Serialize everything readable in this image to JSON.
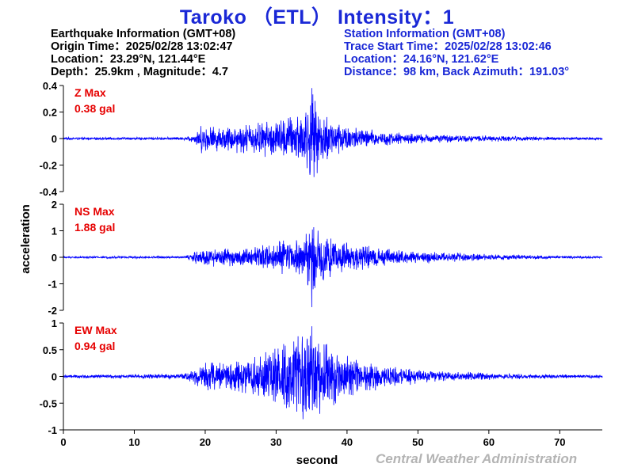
{
  "title": "Taroko （ETL） Intensity：1",
  "earthquake_info": {
    "heading": "Earthquake Information (GMT+08)",
    "origin_time": "Origin Time：2025/02/28 13:02:47",
    "location": "Location：23.29°N, 121.44°E",
    "depth_magnitude": "Depth：25.9km , Magnitude：4.7"
  },
  "station_info": {
    "heading": "Station Information (GMT+08)",
    "trace_start": "Trace Start Time：2025/02/28 13:02:46",
    "location": "Location：24.16°N, 121.62°E",
    "distance": "Distance：98 km, Back Azimuth：191.03°"
  },
  "footer": "Central Weather Administration",
  "colors": {
    "title": "#1a28d6",
    "trace": "#0000ff",
    "max_label": "#e60000",
    "footer": "#b4b4b4"
  },
  "chart_data": {
    "type": "line",
    "xlabel": "second",
    "ylabel": "acceleration",
    "xlim": [
      0,
      76
    ],
    "x_ticks": [
      0,
      10,
      20,
      30,
      40,
      50,
      60,
      70
    ],
    "grid": false,
    "panels": [
      {
        "component": "Z",
        "max_label": "Z Max",
        "max_value": "0.38 gal",
        "ylim": [
          -0.4,
          0.4
        ],
        "y_ticks": [
          -0.4,
          -0.2,
          0,
          0.2,
          0.4
        ],
        "y_tick_labels": [
          "-0.4",
          "-0.2",
          "0",
          "0.2",
          "0.4"
        ],
        "peak": 0.38,
        "envelope": [
          [
            0,
            0.01
          ],
          [
            17,
            0.012
          ],
          [
            18.5,
            0.04
          ],
          [
            19.5,
            0.12
          ],
          [
            22,
            0.1
          ],
          [
            26,
            0.13
          ],
          [
            30,
            0.16
          ],
          [
            32,
            0.2
          ],
          [
            34,
            0.25
          ],
          [
            35,
            0.38
          ],
          [
            36,
            0.24
          ],
          [
            38,
            0.17
          ],
          [
            41,
            0.1
          ],
          [
            45,
            0.06
          ],
          [
            50,
            0.04
          ],
          [
            55,
            0.03
          ],
          [
            60,
            0.025
          ],
          [
            65,
            0.02
          ],
          [
            70,
            0.012
          ],
          [
            76,
            0.01
          ]
        ]
      },
      {
        "component": "NS",
        "max_label": "NS Max",
        "max_value": "1.88 gal",
        "ylim": [
          -2,
          2
        ],
        "y_ticks": [
          -2,
          -1,
          0,
          1,
          2
        ],
        "y_tick_labels": [
          "-2",
          "-1",
          "0",
          "1",
          "2"
        ],
        "peak": 1.88,
        "envelope": [
          [
            0,
            0.04
          ],
          [
            17,
            0.05
          ],
          [
            18.5,
            0.25
          ],
          [
            20,
            0.4
          ],
          [
            23,
            0.35
          ],
          [
            27,
            0.45
          ],
          [
            30,
            0.6
          ],
          [
            33,
            0.9
          ],
          [
            34.5,
            1.3
          ],
          [
            35,
            1.88
          ],
          [
            36,
            1.1
          ],
          [
            38,
            0.8
          ],
          [
            40,
            0.6
          ],
          [
            43,
            0.45
          ],
          [
            46,
            0.35
          ],
          [
            50,
            0.25
          ],
          [
            55,
            0.2
          ],
          [
            60,
            0.12
          ],
          [
            65,
            0.1
          ],
          [
            70,
            0.06
          ],
          [
            76,
            0.04
          ]
        ]
      },
      {
        "component": "EW",
        "max_label": "EW Max",
        "max_value": "0.94 gal",
        "ylim": [
          -1,
          1
        ],
        "y_ticks": [
          -1,
          -0.5,
          0,
          0.5,
          1
        ],
        "y_tick_labels": [
          "-1",
          "-0.5",
          "0",
          "0.5",
          "1"
        ],
        "peak": 0.94,
        "envelope": [
          [
            0,
            0.03
          ],
          [
            10,
            0.04
          ],
          [
            17,
            0.06
          ],
          [
            18.5,
            0.2
          ],
          [
            20,
            0.3
          ],
          [
            24,
            0.35
          ],
          [
            28,
            0.5
          ],
          [
            31,
            0.65
          ],
          [
            33,
            0.8
          ],
          [
            34.5,
            0.94
          ],
          [
            36,
            0.8
          ],
          [
            38,
            0.6
          ],
          [
            40,
            0.45
          ],
          [
            43,
            0.3
          ],
          [
            46,
            0.22
          ],
          [
            50,
            0.15
          ],
          [
            55,
            0.1
          ],
          [
            60,
            0.07
          ],
          [
            65,
            0.05
          ],
          [
            70,
            0.04
          ],
          [
            76,
            0.03
          ]
        ]
      }
    ]
  }
}
